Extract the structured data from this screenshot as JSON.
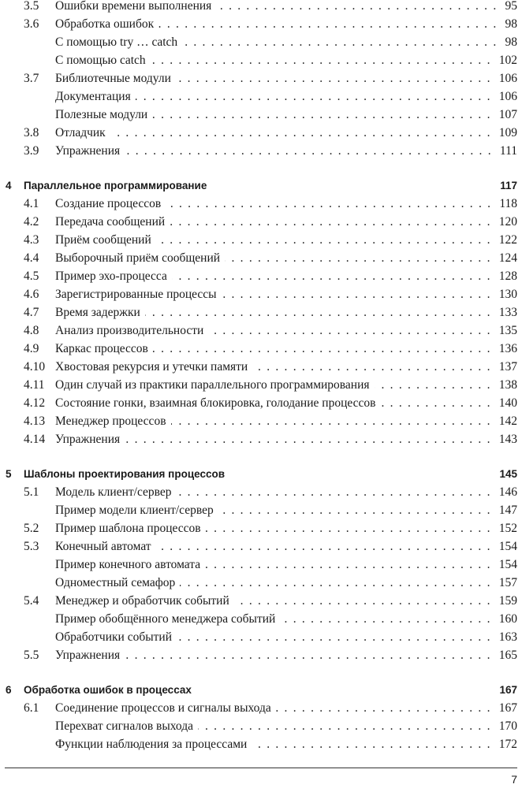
{
  "entries": [
    {
      "kind": "section",
      "num": "3.5",
      "title": "Ошибки времени выполнения",
      "page": "95"
    },
    {
      "kind": "section",
      "num": "3.6",
      "title": "Обработка ошибок",
      "page": "98"
    },
    {
      "kind": "sub",
      "num": "",
      "title": "С помощью try … catch",
      "page": "98"
    },
    {
      "kind": "sub",
      "num": "",
      "title": "С помощью catch",
      "page": "102"
    },
    {
      "kind": "section",
      "num": "3.7",
      "title": "Библиотечные модули",
      "page": "106"
    },
    {
      "kind": "sub",
      "num": "",
      "title": "Документация",
      "page": "106"
    },
    {
      "kind": "sub",
      "num": "",
      "title": "Полезные модули",
      "page": "107"
    },
    {
      "kind": "section",
      "num": "3.8",
      "title": "Отладчик",
      "page": "109"
    },
    {
      "kind": "section",
      "num": "3.9",
      "title": "Упражнения",
      "page": "111"
    },
    {
      "kind": "chapter",
      "num": "4",
      "title": "Параллельное программирование",
      "page": "117"
    },
    {
      "kind": "section",
      "num": "4.1",
      "title": "Создание процессов",
      "page": "118"
    },
    {
      "kind": "section",
      "num": "4.2",
      "title": "Передача сообщений",
      "page": "120"
    },
    {
      "kind": "section",
      "num": "4.3",
      "title": "Приём сообщений",
      "page": "122"
    },
    {
      "kind": "section",
      "num": "4.4",
      "title": "Выборочный приём сообщений",
      "page": "124"
    },
    {
      "kind": "section",
      "num": "4.5",
      "title": "Пример эхо-процесса",
      "page": "128"
    },
    {
      "kind": "section",
      "num": "4.6",
      "title": "Зарегистрированные процессы",
      "page": "130"
    },
    {
      "kind": "section",
      "num": "4.7",
      "title": "Время задержки",
      "page": "133"
    },
    {
      "kind": "section",
      "num": "4.8",
      "title": "Анализ производительности",
      "page": "135"
    },
    {
      "kind": "section",
      "num": "4.9",
      "title": "Каркас процессов",
      "page": "136"
    },
    {
      "kind": "section",
      "num": "4.10",
      "title": "Хвостовая рекурсия и утечки памяти",
      "page": "137"
    },
    {
      "kind": "section",
      "num": "4.11",
      "title": "Один случай из практики параллельного программирования",
      "page": "138"
    },
    {
      "kind": "section",
      "num": "4.12",
      "title": "Состояние гонки, взаимная блокировка, голодание процессов",
      "page": "140"
    },
    {
      "kind": "section",
      "num": "4.13",
      "title": "Менеджер процессов",
      "page": "142"
    },
    {
      "kind": "section",
      "num": "4.14",
      "title": "Упражнения",
      "page": "143"
    },
    {
      "kind": "chapter",
      "num": "5",
      "title": "Шаблоны проектирования процессов",
      "page": "145"
    },
    {
      "kind": "section",
      "num": "5.1",
      "title": "Модель клиент/сервер",
      "page": "146"
    },
    {
      "kind": "sub",
      "num": "",
      "title": "Пример модели клиент/сервер",
      "page": "147"
    },
    {
      "kind": "section",
      "num": "5.2",
      "title": "Пример шаблона процессов",
      "page": "152"
    },
    {
      "kind": "section",
      "num": "5.3",
      "title": "Конечный автомат",
      "page": "154"
    },
    {
      "kind": "sub",
      "num": "",
      "title": "Пример конечного автомата",
      "page": "154"
    },
    {
      "kind": "sub",
      "num": "",
      "title": "Одноместный семафор",
      "page": "157"
    },
    {
      "kind": "section",
      "num": "5.4",
      "title": "Менеджер и обработчик событий",
      "page": "159"
    },
    {
      "kind": "sub",
      "num": "",
      "title": "Пример обобщённого менеджера событий",
      "page": "160"
    },
    {
      "kind": "sub",
      "num": "",
      "title": "Обработчики событий",
      "page": "163"
    },
    {
      "kind": "section",
      "num": "5.5",
      "title": "Упражнения",
      "page": "165"
    },
    {
      "kind": "chapter",
      "num": "6",
      "title": "Обработка ошибок в процессах",
      "page": "167"
    },
    {
      "kind": "section",
      "num": "6.1",
      "title": "Соединение процессов и сигналы выхода",
      "page": "167"
    },
    {
      "kind": "sub",
      "num": "",
      "title": "Перехват сигналов выхода",
      "page": "170"
    },
    {
      "kind": "sub",
      "num": "",
      "title": "Функции наблюдения за процессами",
      "page": "172"
    }
  ],
  "footer": {
    "page_number": "7"
  }
}
